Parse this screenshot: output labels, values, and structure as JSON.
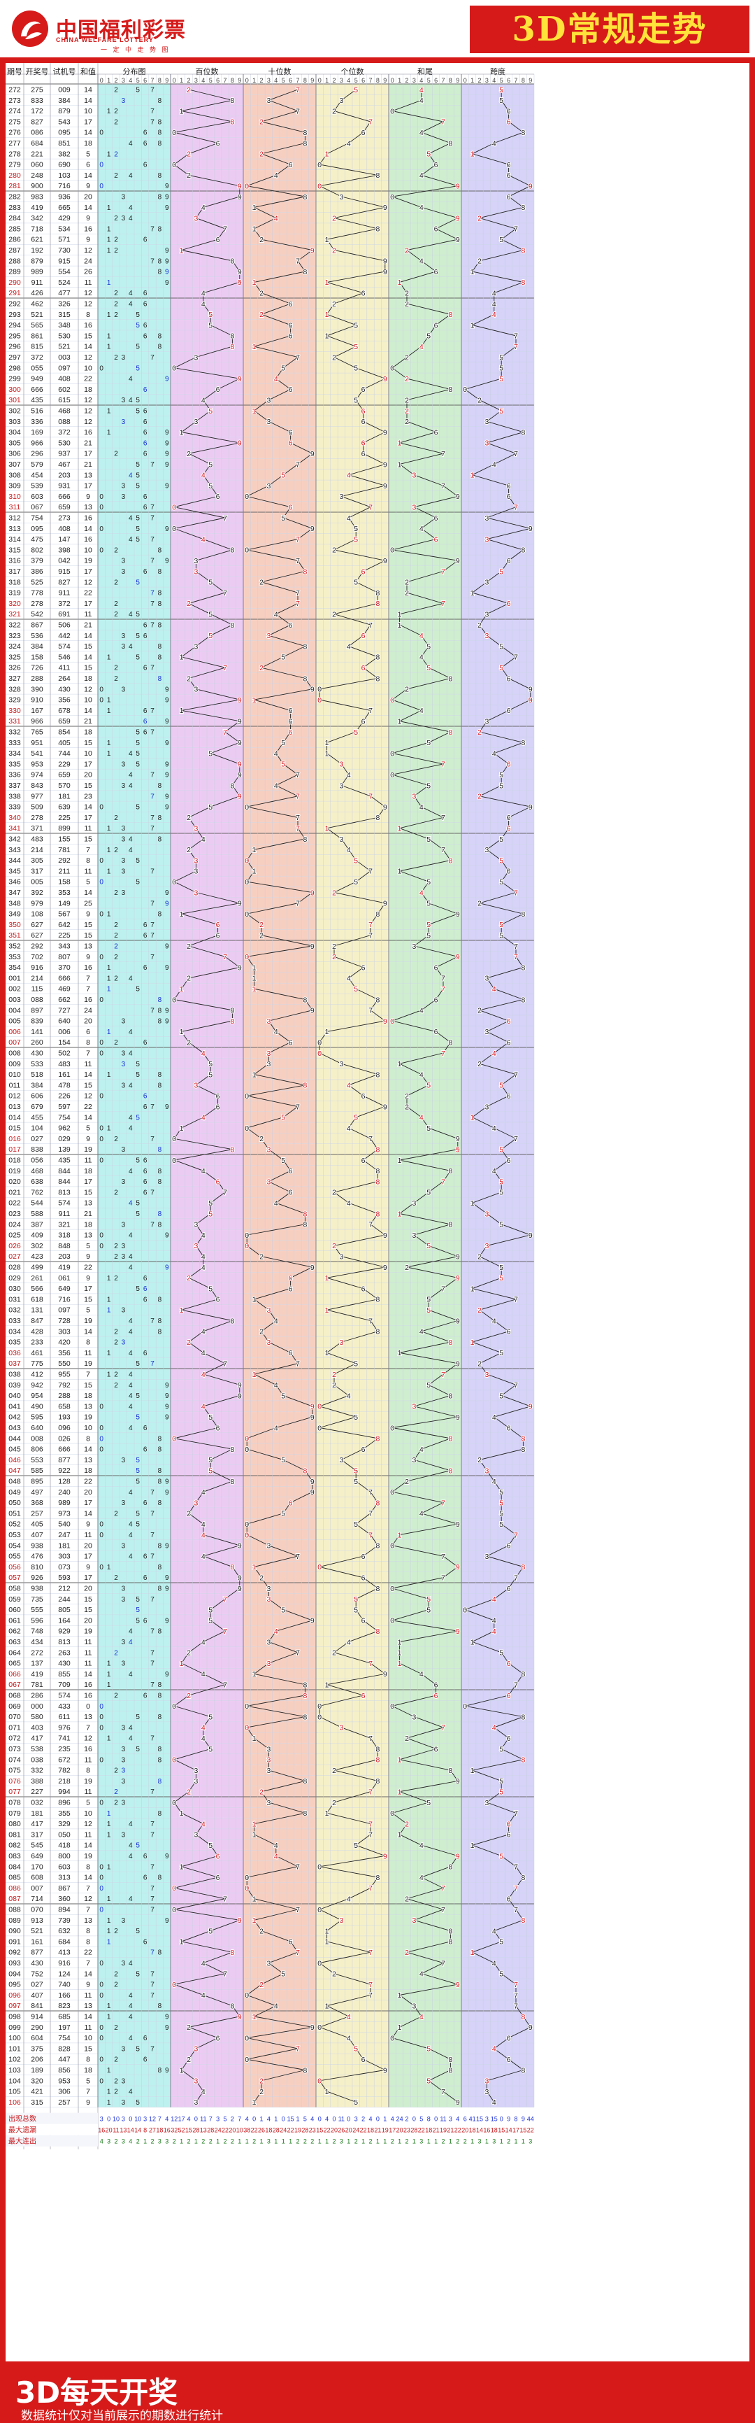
{
  "brand": {
    "cn": "中国福利彩票",
    "en": "CHINA WELFARE LOTTERY",
    "slogan": "一 定 中 走 势 图",
    "logo": "china-welfare-lottery-logo"
  },
  "title": "3D常规走势",
  "headers": {
    "period": "期号",
    "open": "开奖号",
    "trial": "试机号",
    "sum": "和值",
    "dist": "分布图",
    "hundreds": "百位数",
    "tens": "十位数",
    "units": "个位数",
    "tail": "和尾",
    "span": "跨度"
  },
  "digits": [
    "0",
    "1",
    "2",
    "3",
    "4",
    "5",
    "6",
    "7",
    "8",
    "9"
  ],
  "stats": {
    "labels": [
      "出现总数",
      "最大遗漏",
      "最大连出"
    ],
    "rows": [
      [
        3,
        0,
        10,
        3,
        0,
        10,
        3,
        12,
        7,
        4,
        12,
        17,
        4,
        0,
        11,
        7,
        3,
        5,
        2,
        7,
        4,
        0,
        1,
        4,
        1,
        0,
        15,
        1,
        5,
        4,
        0,
        4,
        0,
        11,
        0,
        3,
        2,
        4,
        0,
        1,
        4,
        24,
        2,
        0,
        5,
        8,
        0,
        11,
        3,
        4,
        6,
        41,
        15,
        3,
        15,
        0,
        9,
        8,
        9,
        44
      ],
      [
        16,
        20,
        11,
        13,
        14,
        14,
        8,
        27,
        18,
        16,
        32,
        52,
        15,
        28,
        13,
        28,
        24,
        22,
        20,
        10,
        38,
        22,
        26,
        18,
        28,
        24,
        22,
        19,
        28,
        23,
        15,
        22,
        20,
        26,
        20,
        24,
        22,
        18,
        21,
        19,
        17,
        20,
        23,
        28,
        22,
        18,
        21,
        19,
        21,
        22,
        20,
        18,
        14,
        16,
        18,
        15,
        14,
        17,
        15,
        22
      ],
      [
        4,
        3,
        2,
        3,
        4,
        2,
        1,
        2,
        3,
        3,
        2,
        1,
        2,
        1,
        2,
        2,
        1,
        2,
        2,
        1,
        1,
        2,
        1,
        3,
        1,
        1,
        1,
        2,
        2,
        2,
        1,
        1,
        2,
        3,
        1,
        2,
        1,
        2,
        1,
        1,
        2,
        1,
        2,
        1,
        3,
        1,
        1,
        2,
        1,
        2,
        2,
        1,
        3,
        1,
        3,
        1,
        2,
        1,
        1,
        3
      ]
    ]
  },
  "footer": {
    "title": "3D每天开奖",
    "note": "数据统计仅对当前展示的期数进行统计"
  },
  "colors": {
    "red": "#d61a1a",
    "yellow": "#ffe23a",
    "dist": "#bdf1ef",
    "hundreds": "#eccbf3",
    "tens": "#f7cfc1",
    "units": "#f6f0c8",
    "tail": "#cfeecf",
    "span": "#d6d2f8"
  },
  "chart_data": {
    "type": "table",
    "columns": [
      "期号",
      "开奖号",
      "试机号",
      "和值"
    ],
    "rows": [
      [
        "272",
        "275",
        "009",
        "14"
      ],
      [
        "273",
        "833",
        "384",
        "14"
      ],
      [
        "274",
        "172",
        "879",
        "10"
      ],
      [
        "275",
        "827",
        "543",
        "17"
      ],
      [
        "276",
        "086",
        "095",
        "14"
      ],
      [
        "277",
        "684",
        "851",
        "18"
      ],
      [
        "278",
        "221",
        "382",
        "5"
      ],
      [
        "279",
        "060",
        "690",
        "6"
      ],
      [
        "280",
        "248",
        "103",
        "14"
      ],
      [
        "281",
        "900",
        "716",
        "9"
      ],
      [
        "282",
        "983",
        "936",
        "20"
      ],
      [
        "283",
        "419",
        "665",
        "14"
      ],
      [
        "284",
        "342",
        "429",
        "9"
      ],
      [
        "285",
        "718",
        "534",
        "16"
      ],
      [
        "286",
        "621",
        "571",
        "9"
      ],
      [
        "287",
        "192",
        "730",
        "12"
      ],
      [
        "288",
        "879",
        "915",
        "24"
      ],
      [
        "289",
        "989",
        "554",
        "26"
      ],
      [
        "290",
        "911",
        "524",
        "11"
      ],
      [
        "291",
        "426",
        "477",
        "12"
      ],
      [
        "292",
        "462",
        "326",
        "12"
      ],
      [
        "293",
        "521",
        "315",
        "8"
      ],
      [
        "294",
        "565",
        "348",
        "16"
      ],
      [
        "295",
        "861",
        "530",
        "15"
      ],
      [
        "296",
        "815",
        "521",
        "14"
      ],
      [
        "297",
        "372",
        "003",
        "12"
      ],
      [
        "298",
        "055",
        "097",
        "10"
      ],
      [
        "299",
        "949",
        "408",
        "22"
      ],
      [
        "300",
        "666",
        "602",
        "18"
      ],
      [
        "301",
        "435",
        "615",
        "12"
      ],
      [
        "302",
        "516",
        "468",
        "12"
      ],
      [
        "303",
        "336",
        "088",
        "12"
      ],
      [
        "304",
        "169",
        "372",
        "16"
      ],
      [
        "305",
        "966",
        "530",
        "21"
      ],
      [
        "306",
        "296",
        "937",
        "17"
      ],
      [
        "307",
        "579",
        "467",
        "21"
      ],
      [
        "308",
        "454",
        "203",
        "13"
      ],
      [
        "309",
        "539",
        "931",
        "17"
      ],
      [
        "310",
        "603",
        "666",
        "9"
      ],
      [
        "311",
        "067",
        "659",
        "13"
      ],
      [
        "312",
        "754",
        "273",
        "16"
      ],
      [
        "313",
        "095",
        "408",
        "14"
      ],
      [
        "314",
        "475",
        "147",
        "16"
      ],
      [
        "315",
        "802",
        "398",
        "10"
      ],
      [
        "316",
        "379",
        "042",
        "19"
      ],
      [
        "317",
        "386",
        "915",
        "17"
      ],
      [
        "318",
        "525",
        "827",
        "12"
      ],
      [
        "319",
        "778",
        "911",
        "22"
      ],
      [
        "320",
        "278",
        "372",
        "17"
      ],
      [
        "321",
        "542",
        "691",
        "11"
      ],
      [
        "322",
        "867",
        "506",
        "21"
      ],
      [
        "323",
        "536",
        "442",
        "14"
      ],
      [
        "324",
        "384",
        "574",
        "15"
      ],
      [
        "325",
        "158",
        "546",
        "14"
      ],
      [
        "326",
        "726",
        "411",
        "15"
      ],
      [
        "327",
        "288",
        "264",
        "18"
      ],
      [
        "328",
        "390",
        "430",
        "12"
      ],
      [
        "329",
        "910",
        "356",
        "10"
      ],
      [
        "330",
        "167",
        "678",
        "14"
      ],
      [
        "331",
        "966",
        "659",
        "21"
      ],
      [
        "332",
        "765",
        "854",
        "18"
      ],
      [
        "333",
        "951",
        "405",
        "15"
      ],
      [
        "334",
        "541",
        "744",
        "10"
      ],
      [
        "335",
        "953",
        "229",
        "17"
      ],
      [
        "336",
        "974",
        "659",
        "20"
      ],
      [
        "337",
        "843",
        "570",
        "15"
      ],
      [
        "338",
        "977",
        "181",
        "23"
      ],
      [
        "339",
        "509",
        "639",
        "14"
      ],
      [
        "340",
        "278",
        "225",
        "17"
      ],
      [
        "341",
        "371",
        "899",
        "11"
      ],
      [
        "342",
        "483",
        "155",
        "15"
      ],
      [
        "343",
        "214",
        "781",
        "7"
      ],
      [
        "344",
        "305",
        "292",
        "8"
      ],
      [
        "345",
        "317",
        "211",
        "11"
      ],
      [
        "346",
        "005",
        "158",
        "5"
      ],
      [
        "347",
        "392",
        "353",
        "14"
      ],
      [
        "348",
        "979",
        "149",
        "25"
      ],
      [
        "349",
        "108",
        "567",
        "9"
      ],
      [
        "350",
        "627",
        "642",
        "15"
      ],
      [
        "351",
        "627",
        "225",
        "15"
      ],
      [
        "352",
        "292",
        "343",
        "13"
      ],
      [
        "353",
        "702",
        "807",
        "9"
      ],
      [
        "354",
        "916",
        "370",
        "16"
      ],
      [
        "001",
        "214",
        "666",
        "7"
      ],
      [
        "002",
        "115",
        "469",
        "7"
      ],
      [
        "003",
        "088",
        "662",
        "16"
      ],
      [
        "004",
        "897",
        "727",
        "24"
      ],
      [
        "005",
        "839",
        "640",
        "20"
      ],
      [
        "006",
        "141",
        "006",
        "6"
      ],
      [
        "007",
        "260",
        "154",
        "8"
      ],
      [
        "008",
        "430",
        "502",
        "7"
      ],
      [
        "009",
        "533",
        "483",
        "11"
      ],
      [
        "010",
        "518",
        "161",
        "14"
      ],
      [
        "011",
        "384",
        "478",
        "15"
      ],
      [
        "012",
        "606",
        "226",
        "12"
      ],
      [
        "013",
        "679",
        "597",
        "22"
      ],
      [
        "014",
        "455",
        "754",
        "14"
      ],
      [
        "015",
        "104",
        "962",
        "5"
      ],
      [
        "016",
        "027",
        "029",
        "9"
      ],
      [
        "017",
        "838",
        "139",
        "19"
      ],
      [
        "018",
        "056",
        "435",
        "11"
      ],
      [
        "019",
        "468",
        "844",
        "18"
      ],
      [
        "020",
        "638",
        "844",
        "17"
      ],
      [
        "021",
        "762",
        "813",
        "15"
      ],
      [
        "022",
        "544",
        "574",
        "13"
      ],
      [
        "023",
        "588",
        "911",
        "21"
      ],
      [
        "024",
        "387",
        "321",
        "18"
      ],
      [
        "025",
        "409",
        "318",
        "13"
      ],
      [
        "026",
        "302",
        "848",
        "5"
      ],
      [
        "027",
        "423",
        "203",
        "9"
      ],
      [
        "028",
        "499",
        "419",
        "22"
      ],
      [
        "029",
        "261",
        "061",
        "9"
      ],
      [
        "030",
        "566",
        "649",
        "17"
      ],
      [
        "031",
        "618",
        "716",
        "15"
      ],
      [
        "032",
        "131",
        "097",
        "5"
      ],
      [
        "033",
        "847",
        "728",
        "19"
      ],
      [
        "034",
        "428",
        "303",
        "14"
      ],
      [
        "035",
        "233",
        "420",
        "8"
      ],
      [
        "036",
        "461",
        "356",
        "11"
      ],
      [
        "037",
        "775",
        "550",
        "19"
      ],
      [
        "038",
        "412",
        "955",
        "7"
      ],
      [
        "039",
        "942",
        "792",
        "15"
      ],
      [
        "040",
        "954",
        "288",
        "18"
      ],
      [
        "041",
        "490",
        "658",
        "13"
      ],
      [
        "042",
        "595",
        "193",
        "19"
      ],
      [
        "043",
        "640",
        "096",
        "10"
      ],
      [
        "044",
        "008",
        "026",
        "8"
      ],
      [
        "045",
        "806",
        "666",
        "14"
      ],
      [
        "046",
        "553",
        "877",
        "13"
      ],
      [
        "047",
        "585",
        "922",
        "18"
      ],
      [
        "048",
        "895",
        "128",
        "22"
      ],
      [
        "049",
        "497",
        "240",
        "20"
      ],
      [
        "050",
        "368",
        "989",
        "17"
      ],
      [
        "051",
        "257",
        "973",
        "14"
      ],
      [
        "052",
        "405",
        "540",
        "9"
      ],
      [
        "053",
        "407",
        "247",
        "11"
      ],
      [
        "054",
        "938",
        "181",
        "20"
      ],
      [
        "055",
        "476",
        "303",
        "17"
      ],
      [
        "056",
        "810",
        "073",
        "9"
      ],
      [
        "057",
        "926",
        "593",
        "17"
      ],
      [
        "058",
        "938",
        "212",
        "20"
      ],
      [
        "059",
        "735",
        "244",
        "15"
      ],
      [
        "060",
        "555",
        "805",
        "15"
      ],
      [
        "061",
        "596",
        "164",
        "20"
      ],
      [
        "062",
        "748",
        "929",
        "19"
      ],
      [
        "063",
        "434",
        "813",
        "11"
      ],
      [
        "064",
        "272",
        "263",
        "11"
      ],
      [
        "065",
        "137",
        "430",
        "11"
      ],
      [
        "066",
        "419",
        "855",
        "14"
      ],
      [
        "067",
        "781",
        "709",
        "16"
      ],
      [
        "068",
        "286",
        "574",
        "16"
      ],
      [
        "069",
        "000",
        "433",
        "0"
      ],
      [
        "070",
        "580",
        "611",
        "13"
      ],
      [
        "071",
        "403",
        "976",
        "7"
      ],
      [
        "072",
        "417",
        "741",
        "12"
      ],
      [
        "073",
        "538",
        "235",
        "16"
      ],
      [
        "074",
        "038",
        "672",
        "11"
      ],
      [
        "075",
        "332",
        "782",
        "8"
      ],
      [
        "076",
        "388",
        "218",
        "19"
      ],
      [
        "077",
        "227",
        "994",
        "11"
      ],
      [
        "078",
        "032",
        "896",
        "5"
      ],
      [
        "079",
        "181",
        "355",
        "10"
      ],
      [
        "080",
        "417",
        "329",
        "12"
      ],
      [
        "081",
        "317",
        "050",
        "11"
      ],
      [
        "082",
        "545",
        "418",
        "14"
      ],
      [
        "083",
        "649",
        "800",
        "19"
      ],
      [
        "084",
        "170",
        "603",
        "8"
      ],
      [
        "085",
        "608",
        "313",
        "14"
      ],
      [
        "086",
        "007",
        "867",
        "7"
      ],
      [
        "087",
        "714",
        "360",
        "12"
      ],
      [
        "088",
        "070",
        "894",
        "7"
      ],
      [
        "089",
        "913",
        "739",
        "13"
      ],
      [
        "090",
        "521",
        "632",
        "8"
      ],
      [
        "091",
        "161",
        "684",
        "8"
      ],
      [
        "092",
        "877",
        "413",
        "22"
      ],
      [
        "093",
        "430",
        "916",
        "7"
      ],
      [
        "094",
        "752",
        "124",
        "14"
      ],
      [
        "095",
        "027",
        "740",
        "9"
      ],
      [
        "096",
        "407",
        "166",
        "11"
      ],
      [
        "097",
        "841",
        "823",
        "13"
      ],
      [
        "098",
        "914",
        "685",
        "14"
      ],
      [
        "099",
        "290",
        "197",
        "11"
      ],
      [
        "100",
        "604",
        "754",
        "10"
      ],
      [
        "101",
        "375",
        "828",
        "15"
      ],
      [
        "102",
        "206",
        "447",
        "8"
      ],
      [
        "103",
        "189",
        "856",
        "18"
      ],
      [
        "104",
        "320",
        "953",
        "5"
      ],
      [
        "105",
        "421",
        "306",
        "7"
      ],
      [
        "106",
        "315",
        "257",
        "9"
      ]
    ]
  }
}
